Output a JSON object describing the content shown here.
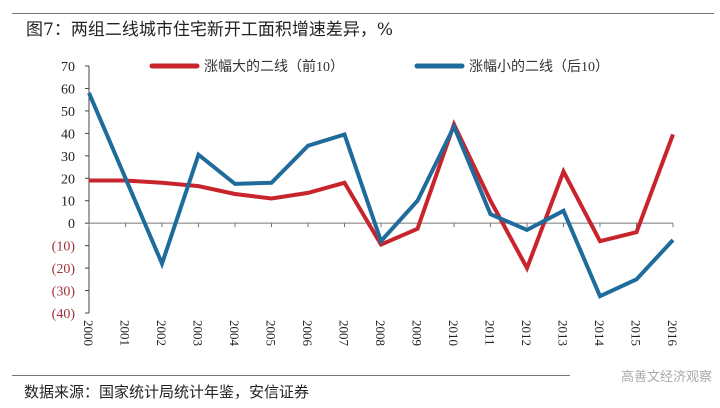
{
  "title": "图7：两组二线城市住宅新开工面积增速差异，%",
  "source": "数据来源：国家统计局统计年鉴，安信证券",
  "watermark": "高善文经济观察",
  "chart_data": {
    "type": "line",
    "title": "图7：两组二线城市住宅新开工面积增速差异，%",
    "xlabel": "",
    "ylabel": "",
    "categories": [
      "2000",
      "2001",
      "2002",
      "2003",
      "2004",
      "2005",
      "2006",
      "2007",
      "2008",
      "2009",
      "2010",
      "2011",
      "2012",
      "2013",
      "2014",
      "2015",
      "2016"
    ],
    "ylim": [
      -40,
      70
    ],
    "yticks": [
      70,
      60,
      50,
      40,
      30,
      20,
      10,
      0,
      -10,
      -20,
      -30,
      -40
    ],
    "ytick_labels": [
      "70",
      "60",
      "50",
      "40",
      "30",
      "20",
      "10",
      "0",
      "(10)",
      "(20)",
      "(30)",
      "(40)"
    ],
    "grid": false,
    "legend_position": "top",
    "series": [
      {
        "name": "涨幅大的二线（前10）",
        "color": "#c8242b",
        "values": [
          19,
          19,
          18,
          16.5,
          13,
          11,
          13.5,
          18,
          -9.5,
          -2.5,
          44,
          10,
          -20,
          23,
          -8,
          -4,
          39.5
        ]
      },
      {
        "name": "涨幅小的二线（后10）",
        "color": "#1f6c9c",
        "values": [
          58,
          20,
          -18,
          30.5,
          17.5,
          18,
          34.5,
          39.5,
          -8,
          10,
          43,
          4,
          -3,
          5.5,
          -32.5,
          -25,
          -7.5
        ]
      }
    ]
  }
}
